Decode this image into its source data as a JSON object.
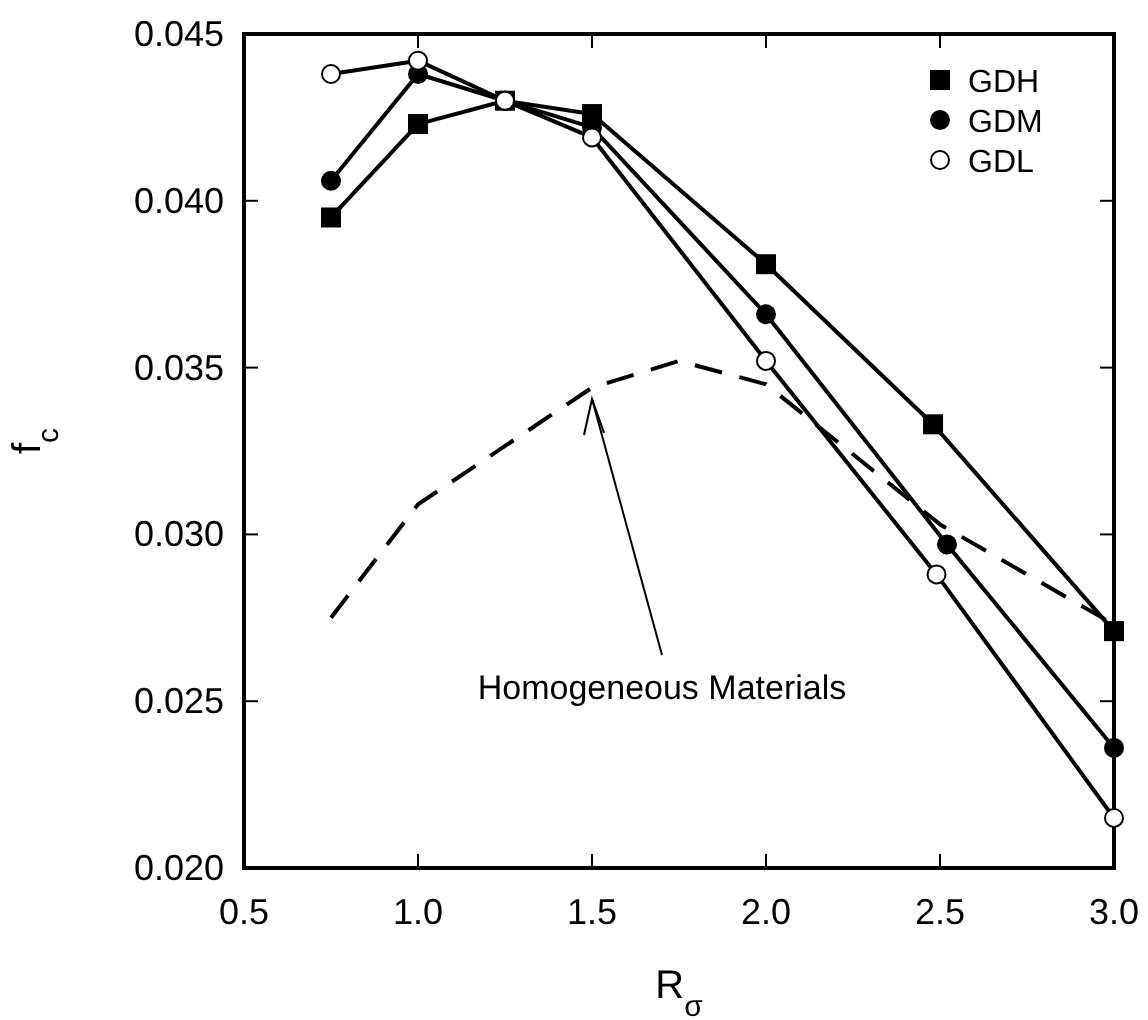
{
  "chart_data": {
    "type": "line",
    "xlabel": "R$_{σ}$",
    "ylabel": "f$_{c}$",
    "xlim": [
      0.5,
      3.0
    ],
    "ylim": [
      0.02,
      0.045
    ],
    "xticks": [
      {
        "value": 0.5,
        "label": "0.5"
      },
      {
        "value": 1,
        "label": "1.0"
      },
      {
        "value": 1.5,
        "label": "1.5"
      },
      {
        "value": 2,
        "label": "2.0"
      },
      {
        "value": 2.5,
        "label": "2.5"
      },
      {
        "value": 3,
        "label": "3.0"
      }
    ],
    "yticks": [
      {
        "value": 0.02,
        "label": "0.020"
      },
      {
        "value": 0.025,
        "label": "0.025"
      },
      {
        "value": 0.03,
        "label": "0.030"
      },
      {
        "value": 0.035,
        "label": "0.035"
      },
      {
        "value": 0.04,
        "label": "0.040"
      },
      {
        "value": 0.045,
        "label": "0.045"
      }
    ],
    "legend": "top right",
    "grid": false,
    "series": [
      {
        "name": "GDH",
        "color": "#000000",
        "marker": "square",
        "x": [
          0.75,
          1.0,
          1.25,
          1.5,
          2.0,
          2.48,
          3.0
        ],
        "values": [
          0.0395,
          0.0423,
          0.043,
          0.0426,
          0.0381,
          0.0333,
          0.0271
        ]
      },
      {
        "name": "GDM",
        "color": "#000000",
        "marker": "circle",
        "x": [
          0.75,
          1.0,
          1.25,
          1.5,
          2.0,
          2.52,
          3.0
        ],
        "values": [
          0.0406,
          0.0438,
          0.043,
          0.0422,
          0.0366,
          0.0297,
          0.0236
        ]
      },
      {
        "name": "GDL",
        "color": "#000000",
        "marker": "open-circle",
        "x": [
          0.75,
          1.0,
          1.25,
          1.5,
          2.0,
          2.49,
          3.0
        ],
        "values": [
          0.0438,
          0.0442,
          0.043,
          0.0419,
          0.0352,
          0.0288,
          0.0215
        ]
      },
      {
        "color": "#000000",
        "marker": "none",
        "line_style": "dashed",
        "x": [
          0.75,
          1.0,
          1.5,
          1.75,
          2.0,
          2.5,
          3.0
        ],
        "values": [
          0.0275,
          0.0309,
          0.0344,
          0.0352,
          0.0345,
          0.0303,
          0.0273
        ]
      }
    ],
    "annotations": [
      {
        "text": "Homogeneous Materials",
        "x": 1.5,
        "y": 0.0343
      }
    ]
  }
}
